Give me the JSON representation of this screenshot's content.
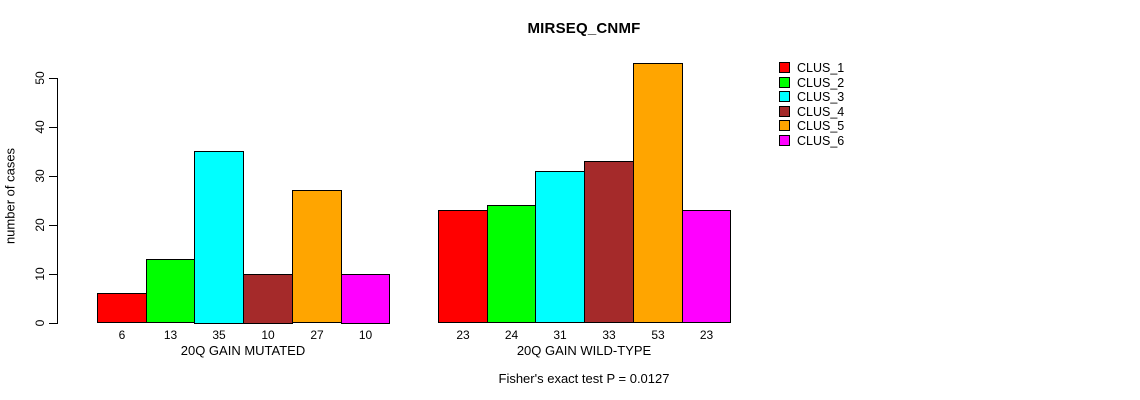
{
  "chart_data": {
    "type": "bar",
    "title": "MIRSEQ_CNMF",
    "ylabel": "number of cases",
    "ylim": [
      0,
      50
    ],
    "yticks": [
      0,
      10,
      20,
      30,
      40,
      50
    ],
    "grid": false,
    "legend_position": "right",
    "categories": [
      "20Q GAIN MUTATED",
      "20Q GAIN WILD-TYPE"
    ],
    "series": [
      {
        "name": "CLUS_1",
        "color": "#FF0000",
        "values": [
          6,
          23
        ]
      },
      {
        "name": "CLUS_2",
        "color": "#00FF00",
        "values": [
          13,
          24
        ]
      },
      {
        "name": "CLUS_3",
        "color": "#00FFFF",
        "values": [
          35,
          31
        ]
      },
      {
        "name": "CLUS_4",
        "color": "#A52A2A",
        "values": [
          10,
          33
        ]
      },
      {
        "name": "CLUS_5",
        "color": "#FFA500",
        "values": [
          27,
          53
        ]
      },
      {
        "name": "CLUS_6",
        "color": "#FF00FF",
        "values": [
          10,
          23
        ]
      }
    ],
    "bar_value_labels": [
      [
        "6",
        "13",
        "35",
        "10",
        "27",
        "10"
      ],
      [
        "23",
        "24",
        "31",
        "33",
        "53",
        "23"
      ]
    ],
    "annotation": "Fisher's exact test P = 0.0127",
    "axis_color": "#000000",
    "bar_border_color": "#000000"
  }
}
